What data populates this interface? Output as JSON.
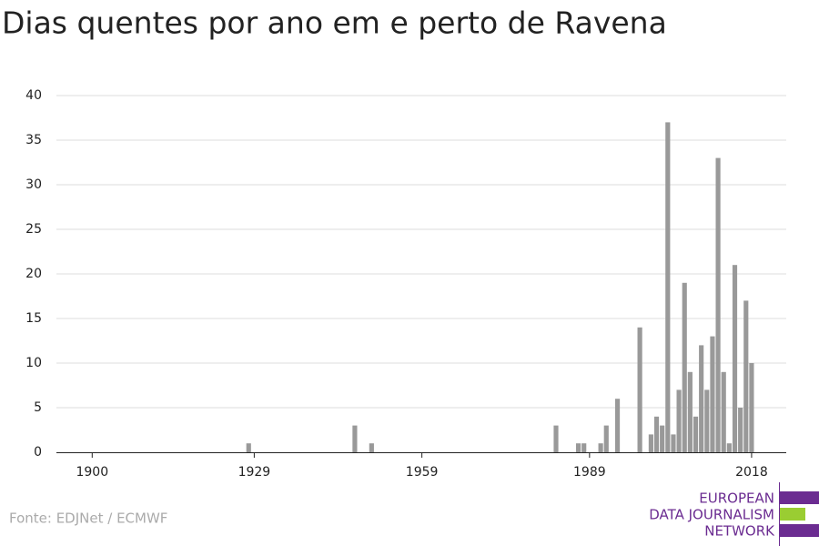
{
  "chart_data": {
    "type": "bar",
    "title": "Dias quentes por ano em e perto de Ravena",
    "source": "Fonte: EDJNet / ECMWF",
    "logo": [
      "EUROPEAN",
      "DATA JOURNALISM",
      "NETWORK"
    ],
    "x": [
      1900,
      1901,
      1902,
      1903,
      1904,
      1905,
      1906,
      1907,
      1908,
      1909,
      1910,
      1911,
      1912,
      1913,
      1914,
      1915,
      1916,
      1917,
      1918,
      1919,
      1920,
      1921,
      1922,
      1923,
      1924,
      1925,
      1926,
      1927,
      1928,
      1929,
      1930,
      1931,
      1932,
      1933,
      1934,
      1935,
      1936,
      1937,
      1938,
      1939,
      1940,
      1941,
      1942,
      1943,
      1944,
      1945,
      1946,
      1947,
      1948,
      1949,
      1950,
      1951,
      1952,
      1953,
      1954,
      1955,
      1956,
      1957,
      1958,
      1959,
      1960,
      1961,
      1962,
      1963,
      1964,
      1965,
      1966,
      1967,
      1968,
      1969,
      1970,
      1971,
      1972,
      1973,
      1974,
      1975,
      1976,
      1977,
      1978,
      1979,
      1980,
      1981,
      1982,
      1983,
      1984,
      1985,
      1986,
      1987,
      1988,
      1989,
      1990,
      1991,
      1992,
      1993,
      1994,
      1995,
      1996,
      1997,
      1998,
      1999,
      2000,
      2001,
      2002,
      2003,
      2004,
      2005,
      2006,
      2007,
      2008,
      2009,
      2010,
      2011,
      2012,
      2013,
      2014,
      2015,
      2016,
      2017,
      2018
    ],
    "values": [
      0,
      0,
      0,
      0,
      0,
      0,
      0,
      0,
      0,
      0,
      0,
      0,
      0,
      0,
      0,
      0,
      0,
      0,
      0,
      0,
      0,
      0,
      0,
      0,
      0,
      0,
      0,
      0,
      1,
      0,
      0,
      0,
      0,
      0,
      0,
      0,
      0,
      0,
      0,
      0,
      0,
      0,
      0,
      0,
      0,
      0,
      0,
      3,
      0,
      0,
      1,
      0,
      0,
      0,
      0,
      0,
      0,
      0,
      0,
      0,
      0,
      0,
      0,
      0,
      0,
      0,
      0,
      0,
      0,
      0,
      0,
      0,
      0,
      0,
      0,
      0,
      0,
      0,
      0,
      0,
      0,
      0,
      0,
      3,
      0,
      0,
      0,
      1,
      1,
      0,
      0,
      1,
      3,
      0,
      6,
      0,
      0,
      0,
      14,
      0,
      2,
      4,
      3,
      37,
      2,
      7,
      19,
      9,
      4,
      12,
      7,
      13,
      33,
      9,
      1,
      21,
      5,
      17,
      10
    ],
    "color": "#999999",
    "xlim": [
      1893.6,
      2024.2
    ],
    "xticks": [
      1900,
      1929,
      1959,
      1989,
      2018
    ],
    "ylim": [
      0,
      40
    ],
    "yticks": [
      0,
      5,
      10,
      15,
      20,
      25,
      30,
      35,
      40
    ],
    "grid": true
  }
}
